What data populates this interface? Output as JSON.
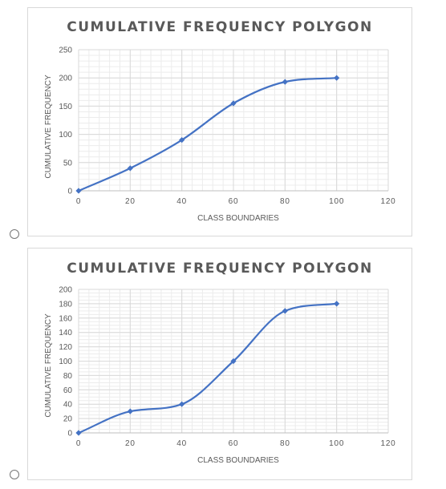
{
  "options": [
    {
      "selected": false
    },
    {
      "selected": false
    }
  ],
  "chart_data": [
    {
      "type": "line",
      "title": "CUMULATIVE FREQUENCY POLYGON",
      "xlabel": "CLASS BOUNDARIES",
      "ylabel": "CUMULATIVE FREQUENCY",
      "xlim": [
        0,
        120
      ],
      "ylim": [
        0,
        250
      ],
      "xticks": [
        0,
        20,
        40,
        60,
        80,
        100,
        120
      ],
      "yticks": [
        0,
        50,
        100,
        150,
        200,
        250
      ],
      "xtick_labels": [
        "0",
        "20",
        "40",
        "60",
        "80",
        "100",
        "120"
      ],
      "ytick_labels": [
        "0",
        "50",
        "100",
        "150",
        "200",
        "250"
      ],
      "minor_grid_step": 10,
      "grid": true,
      "legend": "none",
      "smooth": true,
      "series": [
        {
          "x": [
            0,
            20,
            40,
            60,
            80,
            100
          ],
          "y": [
            0,
            40,
            90,
            155,
            193,
            200
          ],
          "color": "#4472c4"
        }
      ]
    },
    {
      "type": "line",
      "title": "CUMULATIVE FREQUENCY POLYGON",
      "xlabel": "CLASS BOUNDARIES",
      "ylabel": "CUMULATIVE FREQUENCY",
      "xlim": [
        0,
        120
      ],
      "ylim": [
        0,
        200
      ],
      "xticks": [
        0,
        20,
        40,
        60,
        80,
        100,
        120
      ],
      "yticks": [
        0,
        20,
        40,
        60,
        80,
        100,
        120,
        140,
        160,
        180,
        200
      ],
      "xtick_labels": [
        "0",
        "20",
        "40",
        "60",
        "80",
        "100",
        "120"
      ],
      "ytick_labels": [
        "0",
        "20",
        "40",
        "60",
        "80",
        "100",
        "120",
        "140",
        "160",
        "180",
        "200"
      ],
      "minor_grid_step": 5,
      "grid": true,
      "legend": "none",
      "smooth": true,
      "series": [
        {
          "x": [
            0,
            20,
            40,
            60,
            80,
            100
          ],
          "y": [
            0,
            30,
            40,
            100,
            170,
            180
          ],
          "color": "#4472c4"
        }
      ]
    }
  ]
}
